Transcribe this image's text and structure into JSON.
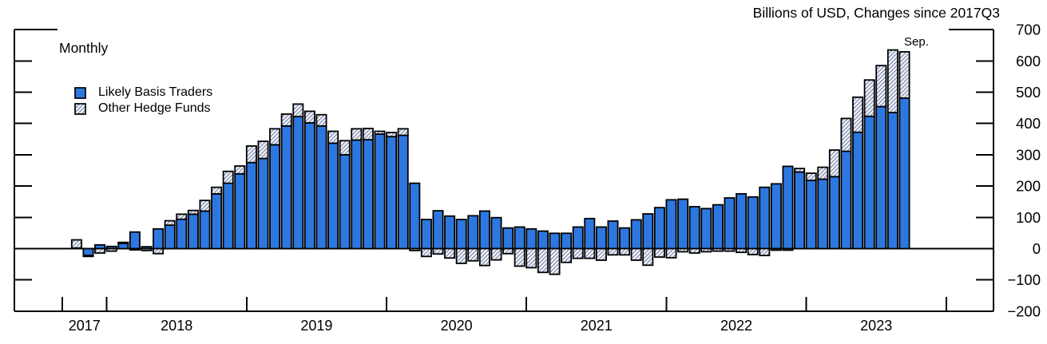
{
  "chart_data": {
    "type": "bar",
    "stacked": true,
    "title": "Billions of USD, Changes since 2017Q3",
    "panel_label": "Monthly",
    "annotation": "Sep.",
    "grid": false,
    "legend_position": "top-left",
    "ylim": [
      -200,
      700
    ],
    "y_ticks": [
      700,
      600,
      500,
      400,
      300,
      200,
      100,
      0,
      -100,
      -200
    ],
    "y_tick_labels": [
      "700",
      "600",
      "500",
      "400",
      "300",
      "200",
      "100",
      "0",
      "−100",
      "−200"
    ],
    "x_year_labels": [
      "2017",
      "2018",
      "2019",
      "2020",
      "2021",
      "2022",
      "2023"
    ],
    "x": [
      "2017-10",
      "2017-11",
      "2017-12",
      "2018-01",
      "2018-02",
      "2018-03",
      "2018-04",
      "2018-05",
      "2018-06",
      "2018-07",
      "2018-08",
      "2018-09",
      "2018-10",
      "2018-11",
      "2018-12",
      "2019-01",
      "2019-02",
      "2019-03",
      "2019-04",
      "2019-05",
      "2019-06",
      "2019-07",
      "2019-08",
      "2019-09",
      "2019-10",
      "2019-11",
      "2019-12",
      "2020-01",
      "2020-02",
      "2020-03",
      "2020-04",
      "2020-05",
      "2020-06",
      "2020-07",
      "2020-08",
      "2020-09",
      "2020-10",
      "2020-11",
      "2020-12",
      "2021-01",
      "2021-02",
      "2021-03",
      "2021-04",
      "2021-05",
      "2021-06",
      "2021-07",
      "2021-08",
      "2021-09",
      "2021-10",
      "2021-11",
      "2021-12",
      "2022-01",
      "2022-02",
      "2022-03",
      "2022-04",
      "2022-05",
      "2022-06",
      "2022-07",
      "2022-08",
      "2022-09",
      "2022-10",
      "2022-11",
      "2022-12",
      "2023-01",
      "2023-02",
      "2023-03",
      "2023-04",
      "2023-05",
      "2023-06",
      "2023-07",
      "2023-08",
      "2023-09"
    ],
    "series": [
      {
        "name": "Likely Basis Traders",
        "style": "solid",
        "color": "#2d78e0",
        "values": [
          2,
          -22,
          12,
          7,
          17,
          53,
          6,
          63,
          75,
          94,
          110,
          120,
          175,
          209,
          239,
          275,
          288,
          332,
          392,
          422,
          402,
          392,
          337,
          300,
          347,
          348,
          366,
          358,
          362,
          209,
          93,
          121,
          104,
          93,
          105,
          120,
          99,
          66,
          69,
          63,
          56,
          49,
          49,
          69,
          96,
          69,
          88,
          66,
          92,
          111,
          131,
          156,
          158,
          134,
          128,
          140,
          162,
          175,
          165,
          196,
          207,
          263,
          245,
          218,
          222,
          230,
          311,
          372,
          423,
          454,
          435,
          481
        ]
      },
      {
        "name": "Other Hedge Funds",
        "style": "hatch",
        "color": "#95a1c1",
        "values": [
          26,
          -3,
          -14,
          -8,
          3,
          -4,
          -6,
          -16,
          14,
          16,
          12,
          34,
          21,
          38,
          25,
          53,
          55,
          51,
          38,
          40,
          37,
          36,
          38,
          45,
          36,
          36,
          9,
          13,
          21,
          -6,
          -25,
          -17,
          -30,
          -47,
          -39,
          -54,
          -36,
          -16,
          -56,
          -61,
          -76,
          -82,
          -44,
          -31,
          -31,
          -37,
          -20,
          -20,
          -37,
          -53,
          -27,
          -29,
          -10,
          -14,
          -10,
          -8,
          -8,
          -12,
          -19,
          -22,
          -5,
          -5,
          11,
          23,
          38,
          85,
          105,
          112,
          116,
          131,
          200,
          148
        ]
      }
    ]
  },
  "colors": {
    "bar_blue": "#2d78e0",
    "hatch_line": "#95a1c1",
    "axis": "#000000",
    "background": "#ffffff"
  }
}
